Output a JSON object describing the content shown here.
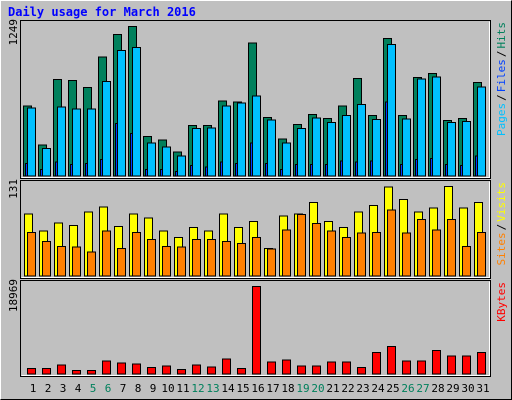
{
  "chart_data": {
    "type": "bar",
    "title": "Daily usage for March 2016",
    "categories": [
      "1",
      "2",
      "3",
      "4",
      "5",
      "6",
      "7",
      "8",
      "9",
      "10",
      "11",
      "12",
      "13",
      "14",
      "15",
      "16",
      "17",
      "18",
      "19",
      "20",
      "21",
      "22",
      "23",
      "24",
      "25",
      "26",
      "27",
      "28",
      "29",
      "30",
      "31"
    ],
    "category_colors": [
      "#000000",
      "#000000",
      "#000000",
      "#000000",
      "#00805c",
      "#00805c",
      "#000000",
      "#000000",
      "#000000",
      "#000000",
      "#000000",
      "#00805c",
      "#00805c",
      "#000000",
      "#000000",
      "#000000",
      "#000000",
      "#000000",
      "#00805c",
      "#00805c",
      "#000000",
      "#000000",
      "#000000",
      "#000000",
      "#000000",
      "#00805c",
      "#00805c",
      "#000000",
      "#000000",
      "#000000",
      "#000000"
    ],
    "legend_separator": "/",
    "panels": [
      {
        "ylim": [
          0,
          1249
        ],
        "yticks": [
          1249
        ],
        "series": [
          {
            "name": "Pages",
            "color": "#00c0ff",
            "values": [
              570,
              235,
              578,
              560,
              560,
              793,
              1050,
              1074,
              280,
              245,
              170,
              398,
              405,
              586,
              612,
              671,
              470,
              280,
              400,
              486,
              450,
              510,
              600,
              476,
              1100,
              480,
              810,
              830,
              450,
              460,
              745
            ]
          },
          {
            "name": "Files",
            "color": "#0040ff",
            "values": [
              110,
              60,
              120,
              100,
              110,
              140,
              440,
              360,
              60,
              60,
              40,
              90,
              80,
              120,
              110,
              280,
              110,
              60,
              100,
              100,
              100,
              130,
              120,
              130,
              620,
              100,
              140,
              150,
              100,
              90,
              170
            ]
          },
          {
            "name": "Hits",
            "color": "#00805c",
            "values": [
              586,
              264,
              807,
              799,
              739,
              994,
              1181,
              1249,
              331,
              306,
              204,
              425,
              425,
              629,
              620,
              1113,
              493,
              314,
              433,
              518,
              484,
              586,
              816,
              510,
              1147,
              510,
              824,
              858,
              467,
              484,
              782
            ]
          }
        ]
      },
      {
        "ylim": [
          0,
          131
        ],
        "yticks": [
          131
        ],
        "series": [
          {
            "name": "Sites",
            "color": "#ff8000",
            "values": [
              64,
              51,
              44,
              43,
              36,
              66,
              41,
              64,
              54,
              44,
              43,
              54,
              54,
              51,
              48,
              57,
              40,
              68,
              90,
              77,
              66,
              57,
              63,
              64,
              97,
              63,
              83,
              68,
              83,
              44,
              64
            ]
          },
          {
            "name": "Visits",
            "color": "#ffff00",
            "values": [
              91,
              66,
              78,
              74,
              94,
              101,
              73,
              91,
              85,
              66,
              57,
              71,
              66,
              91,
              71,
              80,
              41,
              88,
              91,
              108,
              80,
              71,
              94,
              103,
              130,
              112,
              94,
              100,
              131,
              100,
              108
            ]
          }
        ]
      },
      {
        "ylim": [
          0,
          18969
        ],
        "yticks": [
          18969
        ],
        "series": [
          {
            "name": "KBytes",
            "color": "#ff0000",
            "values": [
              1250,
              1250,
              2085,
              834,
              834,
              2919,
              2502,
              2294,
              1460,
              1877,
              1043,
              2085,
              1668,
              3336,
              1250,
              18969,
              2711,
              3128,
              1877,
              1877,
              2711,
              2711,
              1460,
              4796,
              6047,
              2919,
              2919,
              5213,
              3962,
              3962,
              4796
            ]
          }
        ]
      }
    ]
  }
}
